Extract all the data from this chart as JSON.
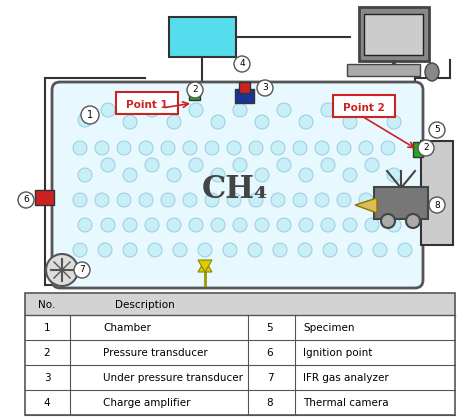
{
  "bg_color": "#ffffff",
  "chamber_color": "#e8f8ff",
  "chamber_border": "#555555",
  "table_header_color": "#d3d3d3",
  "bubble_color": "#c8eef8",
  "bubble_edge": "#99ccdd",
  "table_data": [
    [
      "1",
      "Chamber",
      "5",
      "Specimen"
    ],
    [
      "2",
      "Pressure transducer",
      "6",
      "Ignition point"
    ],
    [
      "3",
      "Under pressure transducer",
      "7",
      "IFR gas analyzer"
    ],
    [
      "4",
      "Charge amplifier",
      "8",
      "Thermal camera"
    ]
  ],
  "point1_label": "Point 1",
  "point2_label": "Point 2",
  "ch4_label": "CH₄",
  "amp_color": "#55ddee",
  "green_color": "#22aa22",
  "blue_color": "#1a3399",
  "red_color": "#cc2222",
  "gray_color": "#aaaaaa",
  "dark_gray": "#777777",
  "label_color": "#cc2222"
}
